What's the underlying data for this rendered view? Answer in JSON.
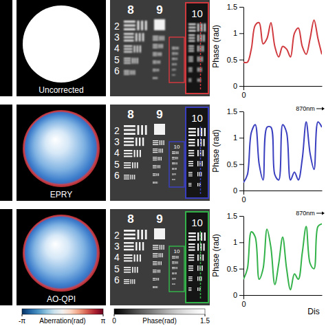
{
  "rows": [
    {
      "method": "Uncorrected",
      "usaf": {
        "groups": [
          "8",
          "9"
        ],
        "elements": [
          "2",
          "3",
          "4",
          "5",
          "6"
        ],
        "inset": "10"
      }
    },
    {
      "method": "EPRY",
      "usaf": {
        "groups": [
          "8",
          "9"
        ],
        "elements": [
          "2",
          "3",
          "4",
          "5",
          "6"
        ],
        "small_group": "10",
        "inset": "10"
      }
    },
    {
      "method": "AO-QPI",
      "usaf": {
        "groups": [
          "8",
          "9"
        ],
        "elements": [
          "2",
          "3",
          "4",
          "5",
          "6"
        ],
        "small_group": "10",
        "inset": "10"
      }
    }
  ],
  "colorbars": {
    "aberration": {
      "label": "Aberration(rad)",
      "range": [
        -3.1416,
        3.1416
      ],
      "ticks": [
        {
          "value": -3.1416,
          "label": "-π"
        },
        {
          "value": 3.1416,
          "label": "π"
        }
      ]
    },
    "phase": {
      "label": "Phase(rad)",
      "range": [
        0,
        1.5
      ],
      "ticks": [
        0,
        1.5
      ]
    }
  },
  "chart_data": [
    {
      "type": "line",
      "ylabel": "Phase (rad)",
      "xlim": [
        0,
        10
      ],
      "xticks": [
        0
      ],
      "ylim": [
        0,
        1.5
      ],
      "yticks": [
        0,
        0.5,
        1,
        1.5
      ],
      "color": "#d0393e",
      "x": [
        0,
        0.5,
        1,
        1.5,
        2,
        2.5,
        3,
        3.5,
        4,
        4.5,
        5,
        5.5,
        6,
        6.5,
        7,
        7.5,
        8,
        8.5,
        9,
        9.5,
        10
      ],
      "values": [
        0.45,
        0.45,
        0.7,
        1.15,
        1.2,
        0.8,
        0.9,
        1.2,
        0.75,
        0.55,
        0.75,
        0.7,
        0.55,
        1.0,
        1.1,
        0.75,
        0.6,
        0.9,
        1.25,
        0.9,
        0.6
      ]
    },
    {
      "type": "line",
      "ylabel": "Phase (rad)",
      "xlim": [
        0,
        10
      ],
      "xticks": [
        0
      ],
      "ylim": [
        0,
        1.5
      ],
      "yticks": [
        0,
        0.5,
        1,
        1.5
      ],
      "color": "#3a3fbf",
      "annotations": [
        "870nm"
      ],
      "x": [
        0,
        0.5,
        1,
        1.5,
        2,
        2.5,
        3,
        3.5,
        4,
        4.5,
        5,
        5.5,
        6,
        6.5,
        7,
        7.5,
        8,
        8.5,
        9,
        9.5,
        10
      ],
      "values": [
        0.15,
        0.3,
        1.1,
        1.25,
        0.5,
        0.2,
        1.2,
        1.2,
        0.3,
        0.2,
        1.25,
        1.1,
        0.2,
        0.35,
        0.2,
        0.6,
        1.3,
        0.7,
        0.4,
        1.3,
        1.2
      ]
    },
    {
      "type": "line",
      "ylabel": "Phase (rad)",
      "xlabel": "Dis",
      "xlim": [
        0,
        10
      ],
      "xticks": [
        0
      ],
      "ylim": [
        0,
        1.5
      ],
      "yticks": [
        0,
        0.5,
        1,
        1.5
      ],
      "color": "#33b24a",
      "annotations": [
        "870nm"
      ],
      "x": [
        0,
        0.5,
        1,
        1.5,
        2,
        2.5,
        3,
        3.5,
        4,
        4.5,
        5,
        5.5,
        6,
        6.5,
        7,
        7.5,
        8,
        8.5,
        9,
        9.5,
        10
      ],
      "values": [
        0.3,
        0.5,
        1.2,
        1.1,
        0.3,
        0.5,
        1.25,
        0.9,
        0.2,
        0.6,
        1.1,
        0.5,
        0.1,
        0.4,
        0.3,
        0.8,
        1.3,
        0.6,
        0.5,
        1.3,
        1.35
      ]
    }
  ]
}
